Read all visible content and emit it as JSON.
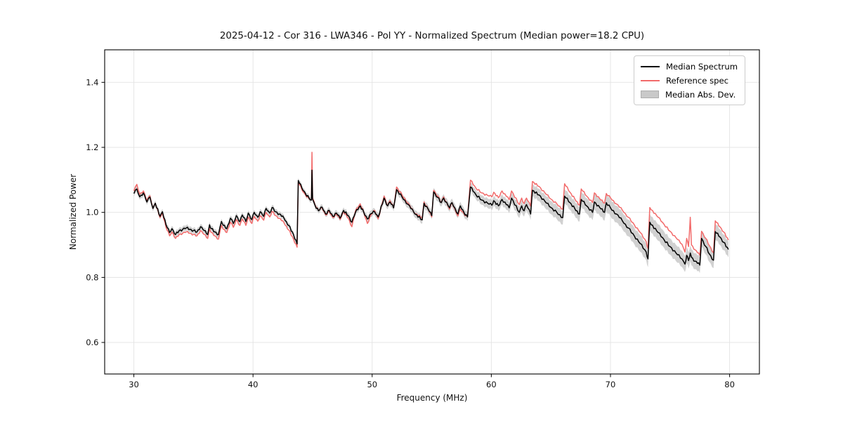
{
  "figure": {
    "title": "2025-04-12 - Cor 316 - LWA346 - Pol YY - Normalized Spectrum (Median power=18.2 CPU)"
  },
  "legend": {
    "items": [
      {
        "label": "Median Spectrum",
        "swatch": "line",
        "color": "#000000"
      },
      {
        "label": "Reference spec",
        "swatch": "line",
        "color": "#f26a6a"
      },
      {
        "label": "Median Abs. Dev.",
        "swatch": "patch",
        "color": "#c9c9c9"
      }
    ]
  },
  "chart_data": {
    "type": "line",
    "title": "2025-04-12 - Cor 316 - LWA346 - Pol YY - Normalized Spectrum (Median power=18.2 CPU)",
    "xlabel": "Frequency (MHz)",
    "ylabel": "Normalized Power",
    "xlim": [
      27.55,
      82.5
    ],
    "ylim": [
      0.503,
      1.5
    ],
    "xticks": [
      30,
      40,
      50,
      60,
      70,
      80
    ],
    "xtick_labels": [
      "30",
      "40",
      "50",
      "60",
      "70",
      "80"
    ],
    "yticks": [
      0.6,
      0.8,
      1.0,
      1.2,
      1.4
    ],
    "ytick_labels": [
      "0.6",
      "0.8",
      "1.0",
      "1.2",
      "1.4"
    ],
    "grid": true,
    "grid_color": "#e3e3e3",
    "legend_position": "upper right",
    "colors": {
      "median": "#000000",
      "reference": "#f26a6a",
      "band": "#c9c9c9"
    },
    "jitter_amplitude": 0.0038,
    "frequency_mhz": [
      30.0,
      30.25,
      30.5,
      30.8,
      31.1,
      31.35,
      31.6,
      31.8,
      32.2,
      32.4,
      32.7,
      33.0,
      33.2,
      33.5,
      33.8,
      34.1,
      34.4,
      34.7,
      35.0,
      35.3,
      35.6,
      35.9,
      36.2,
      36.35,
      36.5,
      36.8,
      37.1,
      37.35,
      37.5,
      37.8,
      38.1,
      38.35,
      38.6,
      38.9,
      39.1,
      39.4,
      39.6,
      39.9,
      40.1,
      40.4,
      40.6,
      40.9,
      41.1,
      41.4,
      41.6,
      41.9,
      42.2,
      42.6,
      43.0,
      43.4,
      43.7,
      43.8,
      44.1,
      44.4,
      44.7,
      44.9,
      44.95,
      45.0,
      45.2,
      45.5,
      45.8,
      46.1,
      46.4,
      46.7,
      47.0,
      47.3,
      47.6,
      48.0,
      48.3,
      48.6,
      49.0,
      49.3,
      49.6,
      49.9,
      50.2,
      50.5,
      51.0,
      51.3,
      51.5,
      51.8,
      52.05,
      52.5,
      53.0,
      53.5,
      54.2,
      54.35,
      54.7,
      55.0,
      55.16,
      55.5,
      55.8,
      56.0,
      56.5,
      56.7,
      57.2,
      57.4,
      57.7,
      58.0,
      58.25,
      58.7,
      59.2,
      59.7,
      60.05,
      60.2,
      60.6,
      60.9,
      61.5,
      61.7,
      62.35,
      62.55,
      62.75,
      62.95,
      63.3,
      63.45,
      64.0,
      64.5,
      65.0,
      65.5,
      66.0,
      66.15,
      66.6,
      67.0,
      67.4,
      67.55,
      68.0,
      68.5,
      68.65,
      69.1,
      69.5,
      69.65,
      70.0,
      70.5,
      71.0,
      71.5,
      72.0,
      72.5,
      73.0,
      73.15,
      73.3,
      74.0,
      74.5,
      75.0,
      75.5,
      76.0,
      76.25,
      76.4,
      76.55,
      76.7,
      76.8,
      77.1,
      77.5,
      77.65,
      78.0,
      78.3,
      78.65,
      78.8,
      79.2,
      79.5,
      79.9
    ],
    "series": [
      {
        "name": "Median Spectrum",
        "values": [
          1.058,
          1.072,
          1.048,
          1.06,
          1.032,
          1.047,
          1.012,
          1.028,
          0.988,
          1.002,
          0.962,
          0.938,
          0.95,
          0.932,
          0.944,
          0.948,
          0.952,
          0.948,
          0.944,
          0.94,
          0.956,
          0.944,
          0.932,
          0.962,
          0.95,
          0.94,
          0.932,
          0.972,
          0.96,
          0.95,
          0.982,
          0.966,
          0.99,
          0.972,
          0.992,
          0.972,
          0.998,
          0.978,
          1.0,
          0.985,
          1.002,
          0.988,
          1.012,
          0.998,
          1.015,
          1.002,
          0.995,
          0.982,
          0.96,
          0.932,
          0.903,
          1.098,
          1.075,
          1.058,
          1.044,
          1.038,
          1.13,
          1.04,
          1.022,
          1.005,
          1.016,
          0.995,
          1.006,
          0.988,
          0.998,
          0.982,
          1.006,
          0.99,
          0.97,
          1.0,
          1.02,
          1.0,
          0.98,
          0.996,
          1.002,
          0.986,
          1.044,
          1.02,
          1.032,
          1.014,
          1.07,
          1.048,
          1.025,
          1.0,
          0.977,
          1.028,
          1.01,
          0.99,
          1.063,
          1.046,
          1.03,
          1.044,
          1.014,
          1.03,
          0.995,
          1.02,
          1.0,
          0.986,
          1.078,
          1.055,
          1.038,
          1.028,
          1.022,
          1.036,
          1.02,
          1.04,
          1.014,
          1.044,
          1.0,
          1.02,
          1.005,
          1.024,
          0.995,
          1.068,
          1.054,
          1.034,
          1.015,
          1.0,
          0.984,
          1.05,
          1.03,
          1.012,
          0.995,
          1.04,
          1.02,
          1.0,
          1.032,
          1.015,
          1.0,
          1.03,
          1.014,
          0.995,
          0.974,
          0.952,
          0.928,
          0.904,
          0.878,
          0.857,
          0.97,
          0.938,
          0.916,
          0.895,
          0.875,
          0.857,
          0.841,
          0.868,
          0.852,
          0.875,
          0.862,
          0.85,
          0.838,
          0.92,
          0.895,
          0.872,
          0.853,
          0.941,
          0.924,
          0.908,
          0.886
        ]
      },
      {
        "name": "Reference spec",
        "values": [
          1.066,
          1.086,
          1.056,
          1.066,
          1.036,
          1.051,
          1.012,
          1.028,
          0.984,
          0.998,
          0.954,
          0.928,
          0.94,
          0.92,
          0.932,
          0.936,
          0.94,
          0.936,
          0.932,
          0.928,
          0.944,
          0.932,
          0.92,
          0.95,
          0.938,
          0.928,
          0.918,
          0.96,
          0.948,
          0.938,
          0.97,
          0.954,
          0.978,
          0.96,
          0.98,
          0.96,
          0.986,
          0.966,
          0.988,
          0.973,
          0.99,
          0.976,
          1.0,
          0.986,
          1.003,
          0.99,
          0.982,
          0.968,
          0.946,
          0.918,
          0.893,
          1.094,
          1.07,
          1.054,
          1.042,
          1.04,
          1.185,
          1.044,
          1.024,
          1.006,
          1.014,
          0.992,
          1.003,
          0.984,
          0.995,
          0.978,
          1.003,
          0.982,
          0.956,
          1.004,
          1.026,
          1.0,
          0.966,
          0.992,
          1.006,
          0.98,
          1.05,
          1.02,
          1.036,
          1.014,
          1.078,
          1.054,
          1.029,
          1.0,
          0.983,
          1.032,
          1.01,
          0.986,
          1.068,
          1.05,
          1.03,
          1.048,
          1.01,
          1.03,
          0.989,
          1.01,
          0.996,
          0.986,
          1.099,
          1.075,
          1.06,
          1.052,
          1.048,
          1.062,
          1.045,
          1.066,
          1.039,
          1.066,
          1.024,
          1.044,
          1.027,
          1.044,
          1.019,
          1.095,
          1.08,
          1.06,
          1.041,
          1.026,
          1.01,
          1.088,
          1.062,
          1.042,
          1.022,
          1.072,
          1.05,
          1.03,
          1.06,
          1.042,
          1.028,
          1.058,
          1.045,
          1.026,
          1.007,
          0.985,
          0.962,
          0.938,
          0.91,
          0.889,
          1.015,
          0.985,
          0.963,
          0.942,
          0.922,
          0.902,
          0.878,
          0.92,
          0.895,
          0.985,
          0.9,
          0.885,
          0.868,
          0.942,
          0.92,
          0.898,
          0.876,
          0.974,
          0.955,
          0.94,
          0.915
        ]
      },
      {
        "name": "Median Abs. Dev.",
        "band_around": "Median Spectrum",
        "halfwidth_breakpoints": [
          [
            30.0,
            0.009
          ],
          [
            44.0,
            0.008
          ],
          [
            58.0,
            0.013
          ],
          [
            63.0,
            0.018
          ],
          [
            70.0,
            0.026
          ],
          [
            80.0,
            0.024
          ]
        ]
      }
    ]
  }
}
